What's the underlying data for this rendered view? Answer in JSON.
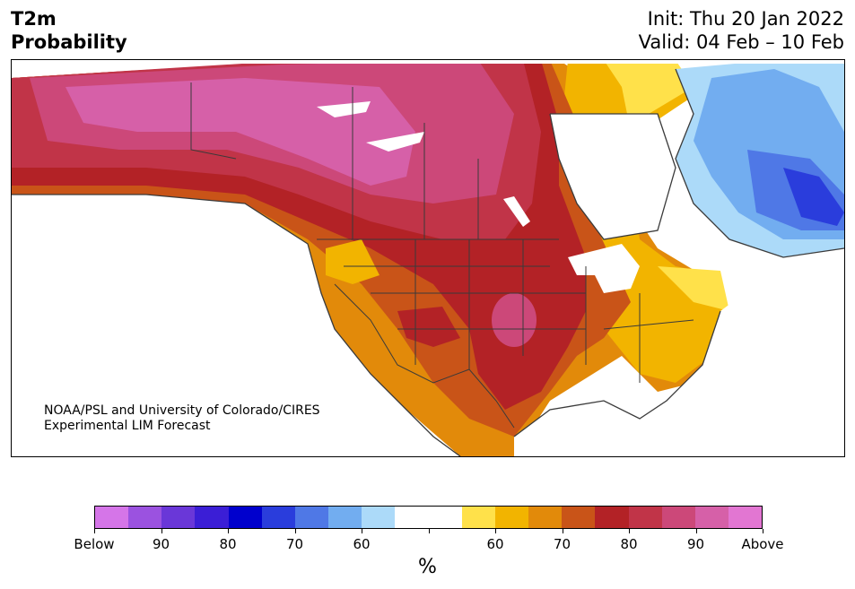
{
  "header": {
    "title_line1": "T2m",
    "title_line2": "Probability",
    "init": "Init: Thu 20 Jan 2022",
    "valid": "Valid: 04 Feb – 10 Feb"
  },
  "credit": {
    "line1": "NOAA/PSL and University of Colorado/CIRES",
    "line2": "Experimental LIM Forecast"
  },
  "colorbar": {
    "colors": [
      "#d575e8",
      "#9b52e0",
      "#6a37d8",
      "#3b1ed6",
      "#0000cd",
      "#2a3ddc",
      "#4f78e6",
      "#72adf0",
      "#acdaf9",
      "#ffffff",
      "#ffffff",
      "#ffe14a",
      "#f2b400",
      "#e28a0a",
      "#c95418",
      "#b32226",
      "#c13448",
      "#cc4879",
      "#d660a8",
      "#e276d2"
    ],
    "labels": [
      "Below",
      "90",
      "80",
      "70",
      "60",
      "60",
      "70",
      "80",
      "90",
      "Above"
    ],
    "unit": "%"
  },
  "map_colors": {
    "above_90": "#d660a8",
    "above_80": "#cc4879",
    "above_75": "#c13448",
    "above_70": "#b32226",
    "above_65": "#c95418",
    "above_60": "#e28a0a",
    "above_55": "#f2b400",
    "above_50": "#ffe14a",
    "below_50": "#acdaf9",
    "below_55": "#72adf0",
    "below_60": "#4f78e6",
    "below_65": "#2a3ddc",
    "land_border": "#3a3a3a"
  }
}
